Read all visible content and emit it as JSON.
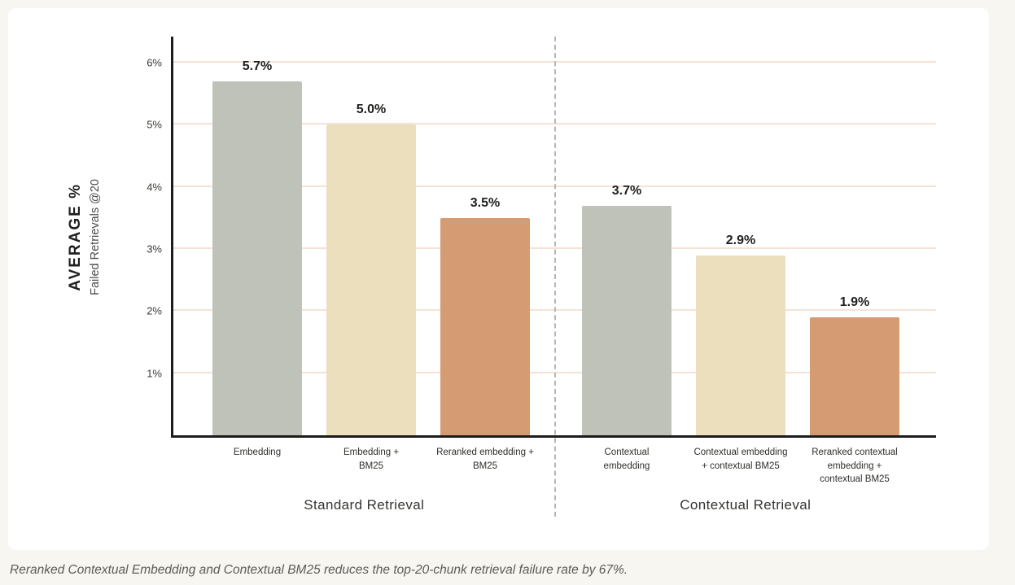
{
  "page": {
    "caption": "Reranked Contextual Embedding and Contextual BM25 reduces the top-20-chunk retrieval failure rate by 67%."
  },
  "chart_data": {
    "type": "bar",
    "title": "",
    "ylabel": "AVERAGE %",
    "ylabel_sub": "Failed Retrievals @20",
    "ymax": 6.42,
    "ylim": [
      0,
      6.42
    ],
    "yticks": [
      1,
      2,
      3,
      4,
      5,
      6
    ],
    "ytick_suffix": "%",
    "grid": true,
    "legend": "none",
    "categories": [
      "Embedding",
      "Embedding + BM25",
      "Reranked embedding + BM25",
      "Contextual embedding",
      "Contextual embedding + contextual BM25",
      "Reranked contextual embedding + contextual BM25"
    ],
    "values": [
      5.7,
      5.0,
      3.5,
      3.7,
      2.9,
      1.9
    ],
    "groups": [
      {
        "label": "Standard Retrieval",
        "bars": [
          {
            "category_lines": [
              "Embedding"
            ],
            "value": 5.7,
            "value_label": "5.7%",
            "color": "#bfc2b9"
          },
          {
            "category_lines": [
              "Embedding +",
              "BM25"
            ],
            "value": 5.0,
            "value_label": "5.0%",
            "color": "#ecdfbd"
          },
          {
            "category_lines": [
              "Reranked embedding +",
              "BM25"
            ],
            "value": 3.5,
            "value_label": "3.5%",
            "color": "#d59c73"
          }
        ]
      },
      {
        "label": "Contextual Retrieval",
        "bars": [
          {
            "category_lines": [
              "Contextual",
              "embedding"
            ],
            "value": 3.7,
            "value_label": "3.7%",
            "color": "#bfc2b9"
          },
          {
            "category_lines": [
              "Contextual embedding",
              "+ contextual BM25"
            ],
            "value": 2.9,
            "value_label": "2.9%",
            "color": "#ecdfbd"
          },
          {
            "category_lines": [
              "Reranked contextual",
              "embedding +",
              "contextual BM25"
            ],
            "value": 1.9,
            "value_label": "1.9%",
            "color": "#d59c73"
          }
        ]
      }
    ]
  },
  "colors": {
    "background": "#f8f6f1",
    "card": "#ffffff",
    "gridline": "#f5e2d7",
    "axis": "#1c1c1a",
    "divider": "#b6b6b0",
    "bar_gray": "#bfc2b9",
    "bar_cream": "#ecdfbd",
    "bar_terracotta": "#d59c73"
  }
}
